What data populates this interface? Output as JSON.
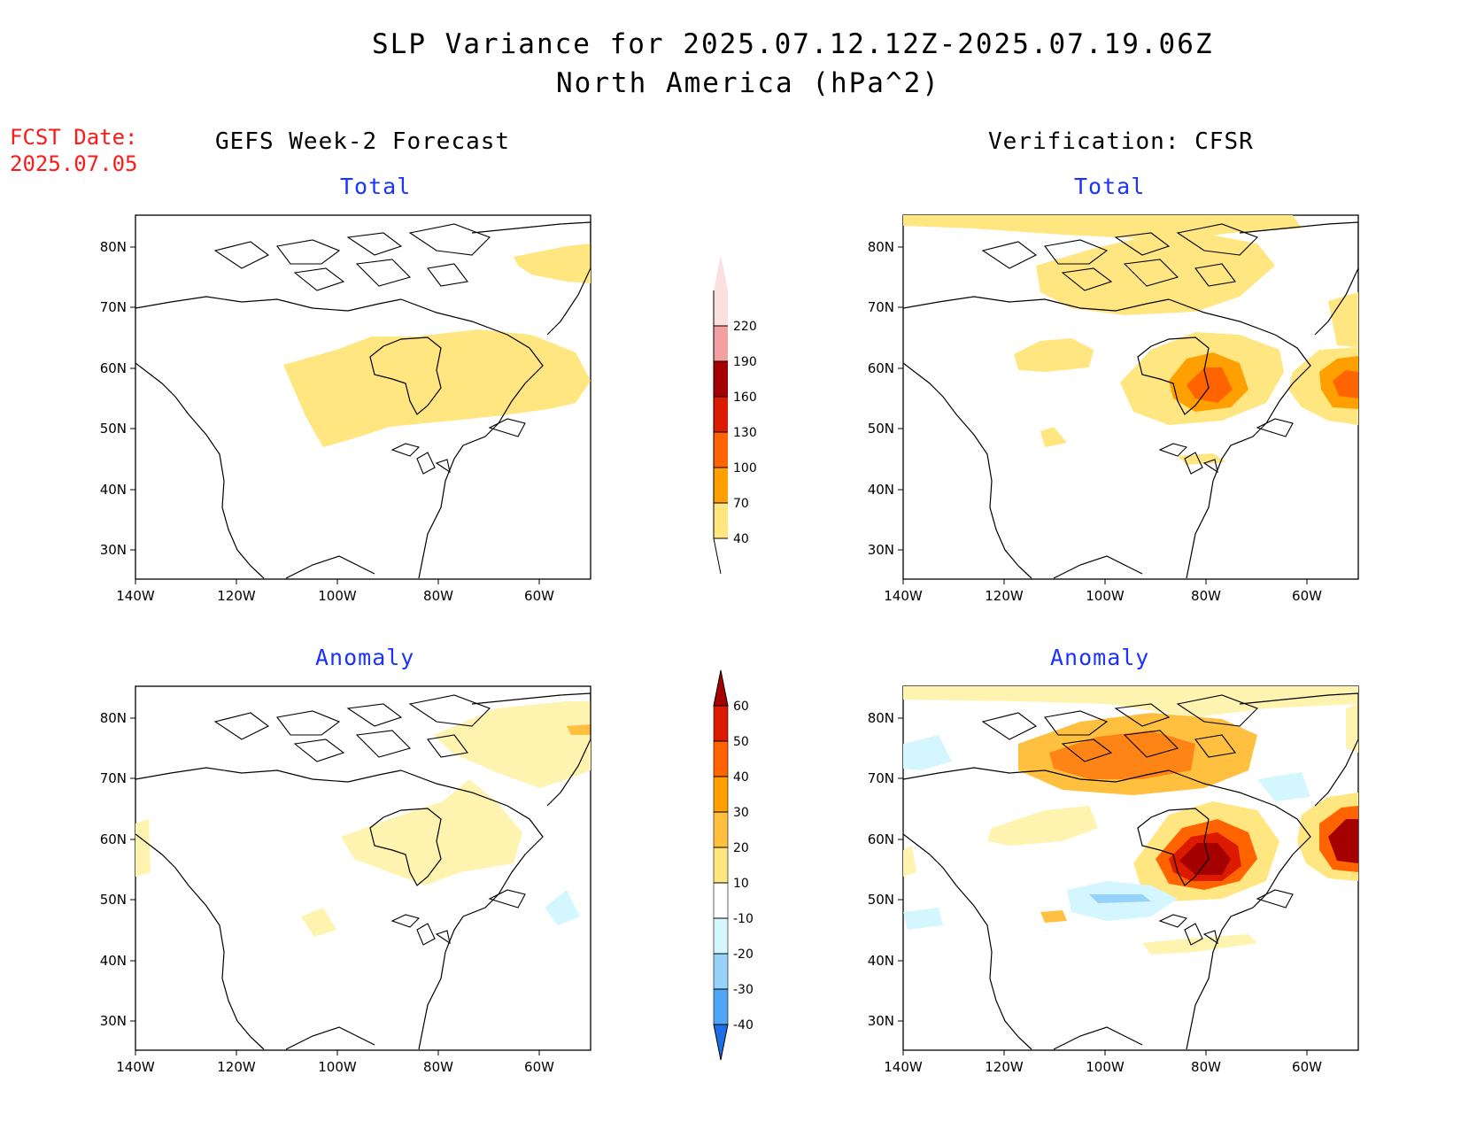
{
  "title": {
    "line1": "SLP Variance for 2025.07.12.12Z-2025.07.19.06Z",
    "line2": "North America (hPa^2)"
  },
  "fcst_date": {
    "label": "FCST Date:",
    "value": "2025.07.05"
  },
  "columns": {
    "left": "GEFS Week-2 Forecast",
    "right": "Verification: CFSR"
  },
  "panels": [
    {
      "id": "forecast-total",
      "subtitle": "Total"
    },
    {
      "id": "verification-total",
      "subtitle": "Total"
    },
    {
      "id": "forecast-anomaly",
      "subtitle": "Anomaly"
    },
    {
      "id": "verification-anomaly",
      "subtitle": "Anomaly"
    }
  ],
  "axes": {
    "lon_labels": [
      "140W",
      "120W",
      "100W",
      "80W",
      "60W"
    ],
    "lat_labels": [
      "80N",
      "70N",
      "60N",
      "50N",
      "40N",
      "30N"
    ]
  },
  "colorbars": {
    "total": {
      "labels": [
        "220",
        "190",
        "160",
        "130",
        "100",
        "70",
        "40"
      ],
      "colors": [
        "#fbe0e0",
        "#f4a0a0",
        "#a50000",
        "#dc1a00",
        "#ff6400",
        "#ffa000",
        "#ffe680"
      ]
    },
    "anomaly": {
      "labels": [
        "60",
        "50",
        "40",
        "30",
        "20",
        "10",
        "-10",
        "-20",
        "-30",
        "-40"
      ],
      "colors": [
        "#a50000",
        "#dc1a00",
        "#ff6400",
        "#ffa000",
        "#ffc040",
        "#ffe680",
        "#ffffff",
        "#d4f6ff",
        "#96d2fa",
        "#50a5f5",
        "#1e6ee6"
      ]
    }
  },
  "colors": {
    "title": "#000000",
    "subtitle": "#1a33ff",
    "fcst_date": "#ff1a1a"
  }
}
